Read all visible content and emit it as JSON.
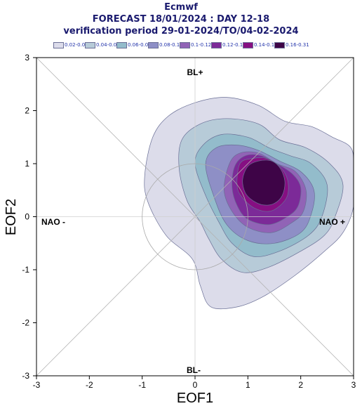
{
  "chart_data": {
    "type": "contour",
    "title_lines": [
      "Ecmwf",
      "FORECAST 18/01/2024 : DAY 12-18",
      "verification period 29-01-2024/TO/04-02-2024"
    ],
    "xlabel": "EOF1",
    "ylabel": "EOF2",
    "xlim": [
      -3,
      3
    ],
    "ylim": [
      -3,
      3
    ],
    "xticks": [
      "-3",
      "-2",
      "-1",
      "0",
      "1",
      "2",
      "3"
    ],
    "yticks": [
      "-3",
      "-2",
      "-1",
      "0",
      "1",
      "2",
      "3"
    ],
    "regime_labels": {
      "top": "BL+",
      "bottom": "BL-",
      "left": "NAO -",
      "right": "NAO +"
    },
    "reference_circle_radius": 1,
    "density_center": [
      1.4,
      0.7
    ],
    "legend": [
      {
        "label": "0.02-0.04",
        "color": "#dcdcea"
      },
      {
        "label": "0.04-0.06",
        "color": "#b7cbd8"
      },
      {
        "label": "0.06-0.08",
        "color": "#93bccb"
      },
      {
        "label": "0.08-0.1",
        "color": "#8e8fc6"
      },
      {
        "label": "0.1-0.12",
        "color": "#9163b6"
      },
      {
        "label": "0.12-0.14",
        "color": "#7c2a98"
      },
      {
        "label": "0.14-0.16",
        "color": "#860f82"
      },
      {
        "label": "0.16-0.31",
        "color": "#3e0447"
      }
    ],
    "contours": [
      {
        "level": "0.02-0.04",
        "points": [
          [
            -0.9,
            0.3
          ],
          [
            -0.95,
            0.8
          ],
          [
            -0.8,
            1.5
          ],
          [
            -0.5,
            1.9
          ],
          [
            0.0,
            2.15
          ],
          [
            0.6,
            2.25
          ],
          [
            1.2,
            2.1
          ],
          [
            1.7,
            1.8
          ],
          [
            2.2,
            1.7
          ],
          [
            2.6,
            1.5
          ],
          [
            2.95,
            1.3
          ],
          [
            3.0,
            0.9
          ],
          [
            3.0,
            0.2
          ],
          [
            2.8,
            -0.3
          ],
          [
            2.45,
            -0.65
          ],
          [
            1.9,
            -1.1
          ],
          [
            1.3,
            -1.5
          ],
          [
            0.8,
            -1.7
          ],
          [
            0.3,
            -1.7
          ],
          [
            0.1,
            -1.3
          ],
          [
            -0.05,
            -0.8
          ],
          [
            -0.55,
            -0.35
          ]
        ]
      },
      {
        "level": "0.04-0.06",
        "points": [
          [
            -0.3,
            0.9
          ],
          [
            -0.25,
            1.45
          ],
          [
            0.1,
            1.75
          ],
          [
            0.6,
            1.85
          ],
          [
            1.2,
            1.75
          ],
          [
            1.6,
            1.45
          ],
          [
            2.1,
            1.3
          ],
          [
            2.55,
            1.0
          ],
          [
            2.8,
            0.6
          ],
          [
            2.65,
            0.0
          ],
          [
            2.45,
            -0.35
          ],
          [
            2.0,
            -0.65
          ],
          [
            1.4,
            -0.95
          ],
          [
            0.9,
            -1.05
          ],
          [
            0.5,
            -0.8
          ],
          [
            0.25,
            -0.4
          ],
          [
            0.1,
            -0.1
          ],
          [
            -0.15,
            0.3
          ]
        ]
      },
      {
        "level": "0.06-0.08",
        "points": [
          [
            0.0,
            1.0
          ],
          [
            0.15,
            1.35
          ],
          [
            0.5,
            1.55
          ],
          [
            1.0,
            1.5
          ],
          [
            1.4,
            1.3
          ],
          [
            1.8,
            1.15
          ],
          [
            2.2,
            1.0
          ],
          [
            2.5,
            0.6
          ],
          [
            2.4,
            0.0
          ],
          [
            2.15,
            -0.35
          ],
          [
            1.6,
            -0.65
          ],
          [
            1.1,
            -0.75
          ],
          [
            0.7,
            -0.5
          ],
          [
            0.45,
            -0.1
          ],
          [
            0.2,
            0.4
          ]
        ]
      },
      {
        "level": "0.08-0.1",
        "points": [
          [
            0.2,
            1.0
          ],
          [
            0.4,
            1.3
          ],
          [
            0.8,
            1.35
          ],
          [
            1.2,
            1.25
          ],
          [
            1.6,
            1.05
          ],
          [
            2.0,
            0.85
          ],
          [
            2.25,
            0.5
          ],
          [
            2.2,
            0.05
          ],
          [
            2.0,
            -0.3
          ],
          [
            1.5,
            -0.5
          ],
          [
            1.0,
            -0.45
          ],
          [
            0.6,
            -0.15
          ],
          [
            0.35,
            0.4
          ]
        ]
      },
      {
        "level": "0.1-0.12",
        "points": [
          [
            0.65,
            1.0
          ],
          [
            0.85,
            1.2
          ],
          [
            1.2,
            1.2
          ],
          [
            1.55,
            1.0
          ],
          [
            1.9,
            0.85
          ],
          [
            2.1,
            0.5
          ],
          [
            2.05,
            0.1
          ],
          [
            1.85,
            -0.1
          ],
          [
            1.45,
            -0.3
          ],
          [
            1.0,
            -0.2
          ],
          [
            0.7,
            0.1
          ],
          [
            0.55,
            0.5
          ]
        ]
      },
      {
        "level": "0.12-0.14",
        "points": [
          [
            0.75,
            0.95
          ],
          [
            0.95,
            1.15
          ],
          [
            1.25,
            1.15
          ],
          [
            1.55,
            1.0
          ],
          [
            1.85,
            0.8
          ],
          [
            2.0,
            0.55
          ],
          [
            1.95,
            0.2
          ],
          [
            1.75,
            0.0
          ],
          [
            1.4,
            -0.15
          ],
          [
            1.0,
            -0.05
          ],
          [
            0.8,
            0.2
          ],
          [
            0.7,
            0.55
          ]
        ]
      },
      {
        "level": "0.14-0.16",
        "points": [
          [
            0.85,
            1.0
          ],
          [
            1.1,
            1.1
          ],
          [
            1.35,
            1.1
          ],
          [
            1.6,
            0.95
          ],
          [
            1.75,
            0.7
          ],
          [
            1.75,
            0.4
          ],
          [
            1.6,
            0.2
          ],
          [
            1.4,
            0.1
          ],
          [
            1.15,
            0.15
          ],
          [
            0.95,
            0.3
          ],
          [
            0.8,
            0.55
          ]
        ]
      },
      {
        "level": "0.16-0.31",
        "points": [
          [
            1.0,
            0.95
          ],
          [
            1.2,
            1.05
          ],
          [
            1.45,
            1.05
          ],
          [
            1.62,
            0.9
          ],
          [
            1.7,
            0.65
          ],
          [
            1.65,
            0.4
          ],
          [
            1.5,
            0.25
          ],
          [
            1.3,
            0.22
          ],
          [
            1.1,
            0.3
          ],
          [
            0.95,
            0.45
          ],
          [
            0.9,
            0.7
          ]
        ]
      }
    ]
  }
}
